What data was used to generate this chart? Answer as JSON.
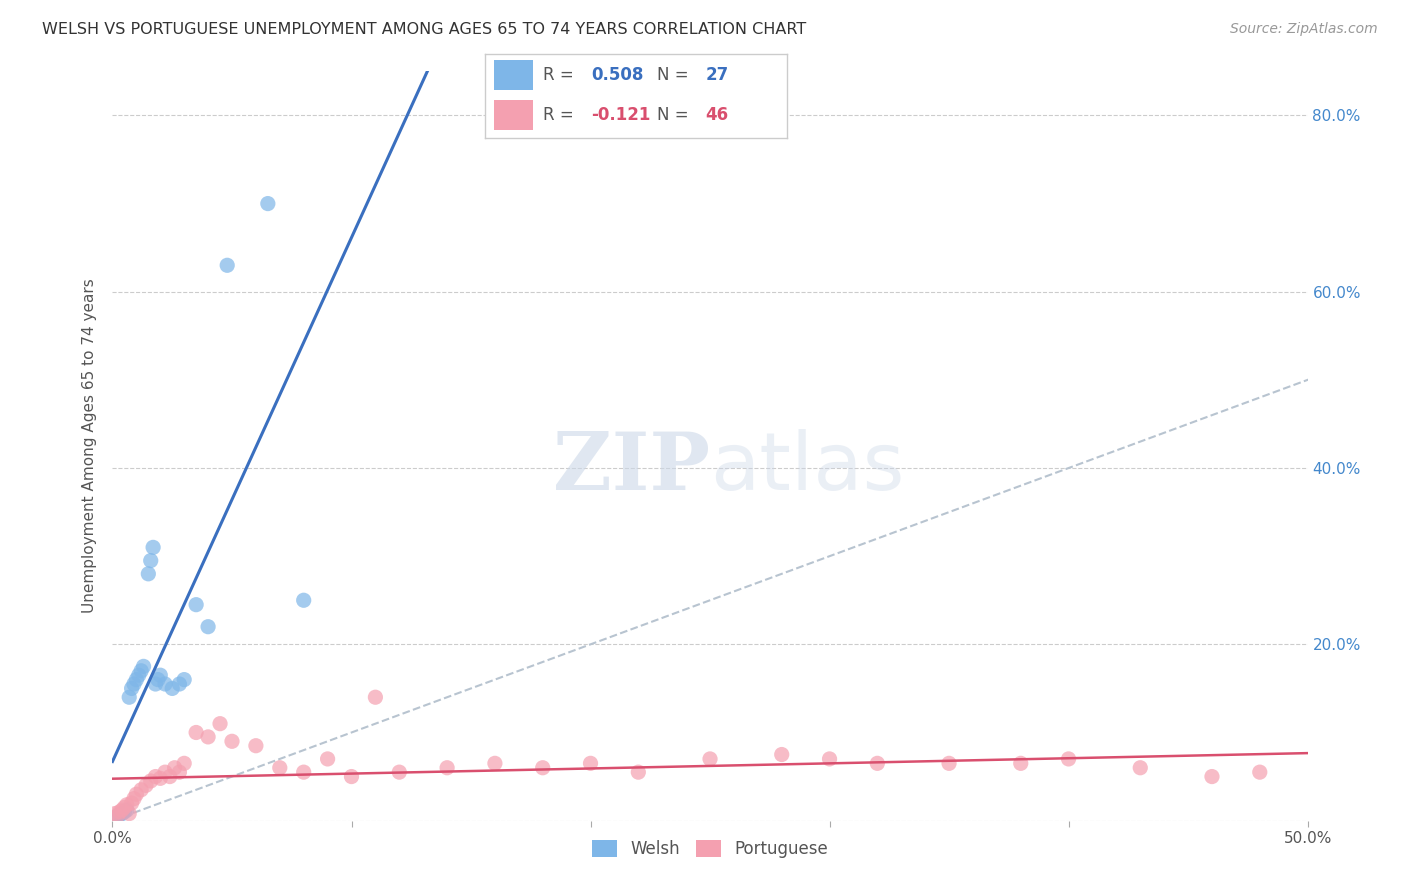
{
  "title": "WELSH VS PORTUGUESE UNEMPLOYMENT AMONG AGES 65 TO 74 YEARS CORRELATION CHART",
  "source": "Source: ZipAtlas.com",
  "ylabel": "Unemployment Among Ages 65 to 74 years",
  "xlim": [
    0.0,
    0.5
  ],
  "ylim": [
    0.0,
    0.85
  ],
  "xticks": [
    0.0,
    0.1,
    0.2,
    0.3,
    0.4,
    0.5
  ],
  "xtick_labels": [
    "0.0%",
    "",
    "",
    "",
    "",
    "50.0%"
  ],
  "yticks": [
    0.0,
    0.2,
    0.4,
    0.6,
    0.8
  ],
  "ytick_labels_right": [
    "",
    "20.0%",
    "40.0%",
    "60.0%",
    "80.0%"
  ],
  "welsh_R": 0.508,
  "welsh_N": 27,
  "portuguese_R": -0.121,
  "portuguese_N": 46,
  "welsh_color": "#7EB6E8",
  "portuguese_color": "#F4A0B0",
  "welsh_line_color": "#3a6fbf",
  "portuguese_line_color": "#d94f6e",
  "diagonal_color": "#b8c4d0",
  "watermark_zip": "ZIP",
  "watermark_atlas": "atlas",
  "background_color": "#ffffff",
  "grid_color": "#cccccc",
  "welsh_x": [
    0.002,
    0.003,
    0.004,
    0.005,
    0.006,
    0.007,
    0.008,
    0.009,
    0.01,
    0.011,
    0.012,
    0.013,
    0.015,
    0.016,
    0.017,
    0.018,
    0.019,
    0.02,
    0.022,
    0.025,
    0.028,
    0.03,
    0.035,
    0.04,
    0.048,
    0.065,
    0.08
  ],
  "welsh_y": [
    0.005,
    0.007,
    0.008,
    0.01,
    0.012,
    0.14,
    0.15,
    0.155,
    0.16,
    0.165,
    0.17,
    0.175,
    0.28,
    0.295,
    0.31,
    0.155,
    0.16,
    0.165,
    0.155,
    0.15,
    0.155,
    0.16,
    0.245,
    0.22,
    0.63,
    0.7,
    0.25
  ],
  "portuguese_x": [
    0.001,
    0.002,
    0.003,
    0.004,
    0.005,
    0.006,
    0.007,
    0.008,
    0.009,
    0.01,
    0.012,
    0.014,
    0.016,
    0.018,
    0.02,
    0.022,
    0.024,
    0.026,
    0.028,
    0.03,
    0.035,
    0.04,
    0.045,
    0.05,
    0.06,
    0.07,
    0.08,
    0.09,
    0.1,
    0.11,
    0.12,
    0.14,
    0.16,
    0.18,
    0.2,
    0.22,
    0.25,
    0.28,
    0.3,
    0.32,
    0.35,
    0.38,
    0.4,
    0.43,
    0.46,
    0.48
  ],
  "portuguese_y": [
    0.008,
    0.005,
    0.01,
    0.012,
    0.015,
    0.018,
    0.008,
    0.02,
    0.025,
    0.03,
    0.035,
    0.04,
    0.045,
    0.05,
    0.048,
    0.055,
    0.05,
    0.06,
    0.055,
    0.065,
    0.1,
    0.095,
    0.11,
    0.09,
    0.085,
    0.06,
    0.055,
    0.07,
    0.05,
    0.14,
    0.055,
    0.06,
    0.065,
    0.06,
    0.065,
    0.055,
    0.07,
    0.075,
    0.07,
    0.065,
    0.065,
    0.065,
    0.07,
    0.06,
    0.05,
    0.055
  ]
}
